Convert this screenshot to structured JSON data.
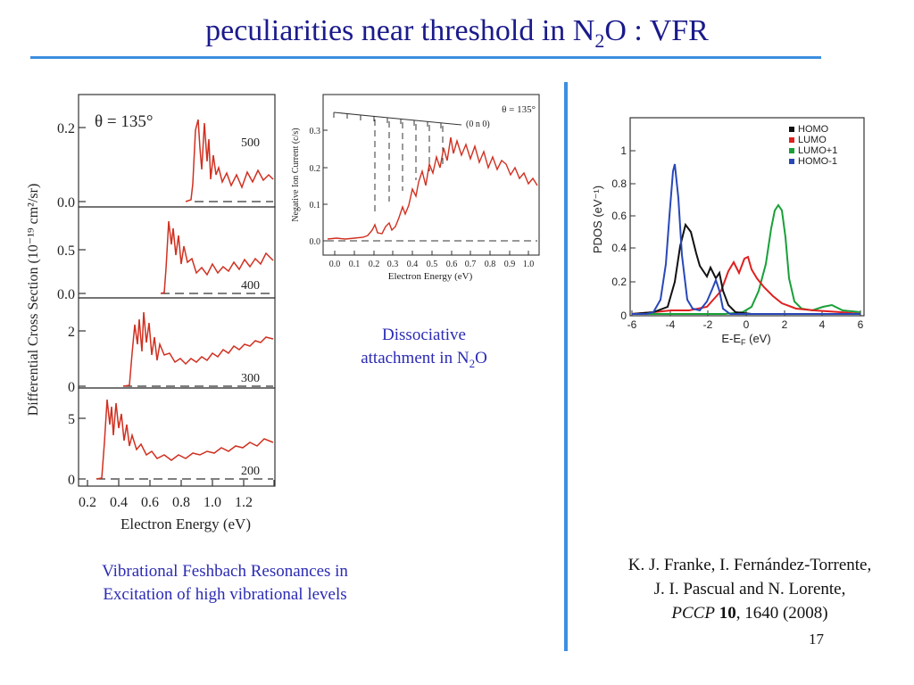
{
  "slide": {
    "title_main": "peculiarities near threshold in N",
    "title_sub": "2",
    "title_tail": "O : VFR",
    "number": "17",
    "accent_color": "#3d8fe0",
    "title_color": "#1a1a8c",
    "caption_color": "#2b2bb5"
  },
  "left_caption": {
    "line1": "Vibrational Feshbach Resonances in",
    "line2": "Excitation of high vibrational levels"
  },
  "middle_caption": {
    "line1": "Dissociative",
    "line2_main": "attachment in N",
    "line2_sub": "2",
    "line2_tail": "O"
  },
  "reference": {
    "line1": "K. J. Franke, I. Fernández-Torrente,",
    "line2": "J. I. Pascual and N. Lorente,",
    "journal": "PCCP",
    "volume": "10",
    "pages_year": ", 1640 (2008)"
  },
  "figure_left": {
    "angle_label": "θ = 135°",
    "ylabel": "Differential Cross Section (10⁻¹⁹ cm²/sr)",
    "xlabel": "Electron Energy (eV)",
    "x_ticks": [
      "0.2",
      "0.4",
      "0.6",
      "0.8",
      "1.0",
      "1.2"
    ],
    "panels": [
      {
        "label": "500",
        "y_ticks": [
          "0.2",
          "0.0"
        ]
      },
      {
        "label": "400",
        "y_ticks": [
          "0.5",
          "0.0"
        ]
      },
      {
        "label": "300",
        "y_ticks": [
          "2",
          "0"
        ]
      },
      {
        "label": "200",
        "y_ticks": [
          "5",
          "0"
        ]
      }
    ]
  },
  "figure_middle": {
    "angle_label": "θ = 135°",
    "progression_label": "(0 n 0)",
    "ylabel": "Negative Ion Current (c/s)",
    "xlabel": "Electron Energy (eV)",
    "x_ticks": [
      "0.0",
      "0.1",
      "0.2",
      "0.3",
      "0.4",
      "0.5",
      "0.6",
      "0.7",
      "0.8",
      "0.9",
      "1.0"
    ],
    "y_ticks": [
      "0.0",
      "0.1",
      "0.2",
      "0.3"
    ]
  },
  "figure_right": {
    "ylabel": "PDOS (eV⁻¹)",
    "xlabel": "E-E",
    "xlabel_sub": "F",
    "xlabel_tail": " (eV)",
    "x_ticks": [
      "-6",
      "-4",
      "-2",
      "0",
      "2",
      "4",
      "6"
    ],
    "y_ticks": [
      "0",
      "0.2",
      "0.4",
      "0.6",
      "0.8",
      "1"
    ],
    "legend": [
      {
        "name": "HOMO",
        "color": "#111111"
      },
      {
        "name": "LUMO",
        "color": "#e02020"
      },
      {
        "name": "LUMO+1",
        "color": "#18a038"
      },
      {
        "name": "HOMO-1",
        "color": "#2848b8"
      }
    ]
  }
}
